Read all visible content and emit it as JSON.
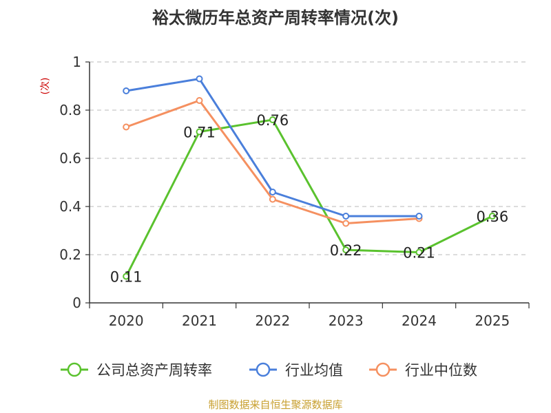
{
  "chart_data": {
    "type": "line",
    "title": "裕太微历年总资产周转率情况(次)",
    "ylabel": "(次)",
    "xlabel": "",
    "categories": [
      "2020",
      "2021",
      "2022",
      "2023",
      "2024",
      "2025"
    ],
    "ylim": [
      0,
      1
    ],
    "yticks": [
      "0",
      "0.2",
      "0.4",
      "0.6",
      "0.8",
      "1"
    ],
    "grid": true,
    "legend_position": "bottom",
    "series": [
      {
        "name": "公司总资产周转率",
        "color": "#5ac22e",
        "values": [
          0.11,
          0.71,
          0.76,
          0.22,
          0.21,
          0.36
        ],
        "labels": [
          "0.11",
          "0.71",
          "0.76",
          "0.22",
          "0.21",
          "0.36"
        ]
      },
      {
        "name": "行业均值",
        "color": "#4a7fdb",
        "values": [
          0.88,
          0.93,
          0.46,
          0.36,
          0.36,
          null
        ]
      },
      {
        "name": "行业中位数",
        "color": "#f59060",
        "values": [
          0.73,
          0.84,
          0.43,
          0.33,
          0.35,
          null
        ]
      }
    ]
  },
  "source": "制图数据来自恒生聚源数据库"
}
